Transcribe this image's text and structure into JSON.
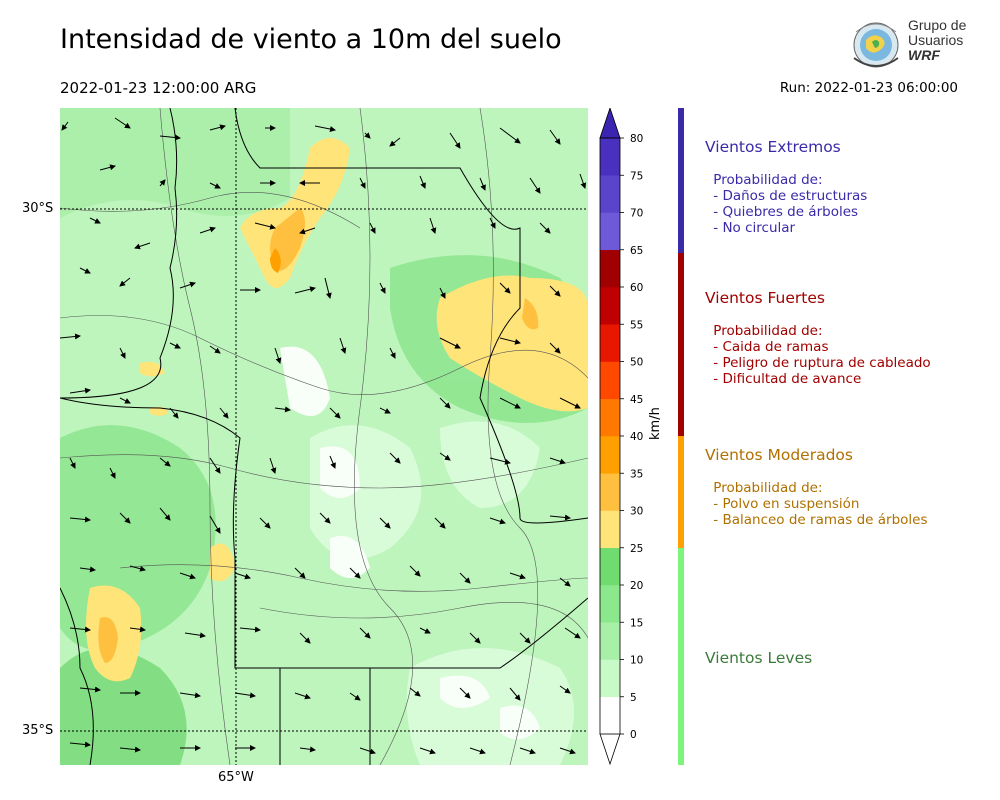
{
  "header": {
    "title": "Intensidad de viento a 10m del suelo",
    "valid_time": "2022-01-23 12:00:00 ARG",
    "run_time": "Run: 2022-01-23 06:00:00"
  },
  "logo": {
    "line1": "Grupo de",
    "line2": "Usuarios",
    "line3": "WRF"
  },
  "map": {
    "lat_labels": [
      "30°S",
      "35°S"
    ],
    "lon_labels": [
      "65°W"
    ]
  },
  "colorbar": {
    "unit": "km/h",
    "ticks": [
      "0",
      "5",
      "10",
      "15",
      "20",
      "25",
      "30",
      "35",
      "40",
      "45",
      "50",
      "55",
      "60",
      "65",
      "70",
      "75",
      "80"
    ],
    "colors": [
      "#ffffff",
      "#c8fac8",
      "#a8f0a8",
      "#8ce88c",
      "#70dc70",
      "#ffe47a",
      "#ffc040",
      "#ffa000",
      "#ff7800",
      "#ff4800",
      "#e81800",
      "#c00000",
      "#a00000",
      "#6e5ad8",
      "#5a44cc",
      "#4a30be"
    ]
  },
  "legend": [
    {
      "title": "Vientos Extremos",
      "color": "#3a2aa8",
      "lines": " Probabilidad de:\n - Daños de estructuras\n - Quiebres de árboles\n - No circular"
    },
    {
      "title": "Vientos Fuertes",
      "color": "#a00000",
      "lines": " Probabilidad de:\n - Caida de ramas\n - Peligro de ruptura de cableado\n - Dificultad de avance"
    },
    {
      "title": "Vientos Moderados",
      "color": "#b07000",
      "lines": " Probabilidad de:\n - Polvo en suspensión\n - Balanceo de ramas de árboles"
    },
    {
      "title": "Vientos Leves",
      "color": "#3a7a3a",
      "lines": ""
    }
  ]
}
